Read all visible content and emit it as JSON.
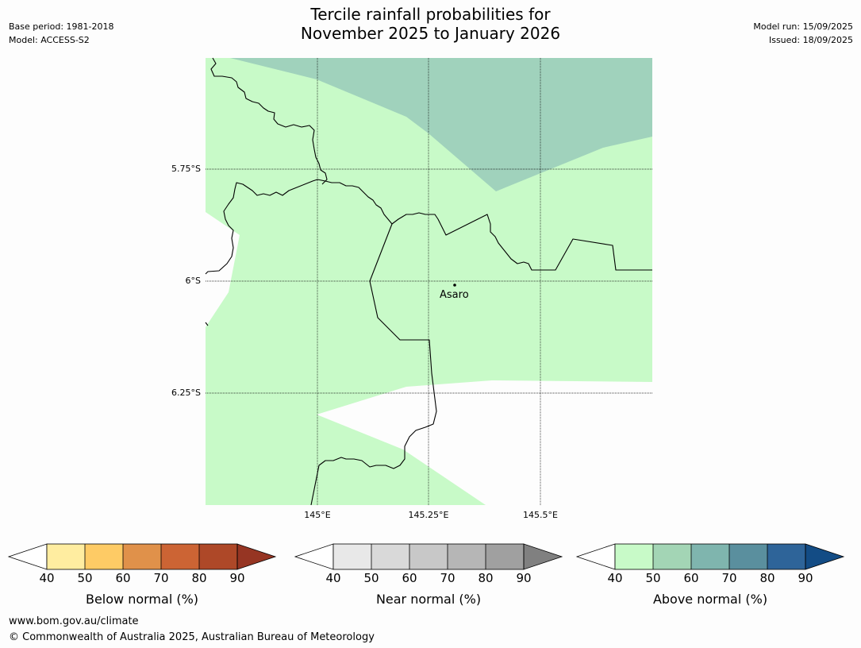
{
  "header": {
    "title_line1": "Tercile rainfall probabilities for",
    "title_line2": "November 2025 to January 2026",
    "base_period": "Base period: 1981-2018",
    "model": "Model: ACCESS-S2",
    "model_run": "Model run: 15/09/2025",
    "issued": "Issued: 18/09/2025"
  },
  "map": {
    "latitude_labels": [
      "5.75°S",
      "6°S",
      "6.25°S"
    ],
    "longitude_labels": [
      "145°E",
      "145.25°E",
      "145.5°E"
    ],
    "place": {
      "name": "Asaro"
    },
    "colors": {
      "above_40_50": "#c8fac8",
      "above_50_60": "#a0d2bc",
      "background": "#ffffff",
      "border": "#000000",
      "gridline": "#000000"
    }
  },
  "colorbars": [
    {
      "title": "Below normal (%)",
      "ticks": [
        "40",
        "50",
        "60",
        "70",
        "80",
        "90"
      ],
      "colors": [
        "#ffffff",
        "#ffeda0",
        "#fecb65",
        "#e0914a",
        "#cc6434",
        "#ae4828",
        "#963523"
      ]
    },
    {
      "title": "Near normal (%)",
      "ticks": [
        "40",
        "50",
        "60",
        "70",
        "80",
        "90"
      ],
      "colors": [
        "#ffffff",
        "#e8e8e8",
        "#d9d9d9",
        "#c8c8c8",
        "#b6b6b6",
        "#a0a0a0",
        "#808080"
      ]
    },
    {
      "title": "Above normal (%)",
      "ticks": [
        "40",
        "50",
        "60",
        "70",
        "80",
        "90"
      ],
      "colors": [
        "#ffffff",
        "#c8fac8",
        "#a3d5b5",
        "#7fb5ae",
        "#5a8f9e",
        "#2e6499",
        "#134c85"
      ]
    }
  ],
  "footer": {
    "url": "www.bom.gov.au/climate",
    "copyright": "© Commonwealth of Australia 2025, Australian Bureau of Meteorology"
  }
}
